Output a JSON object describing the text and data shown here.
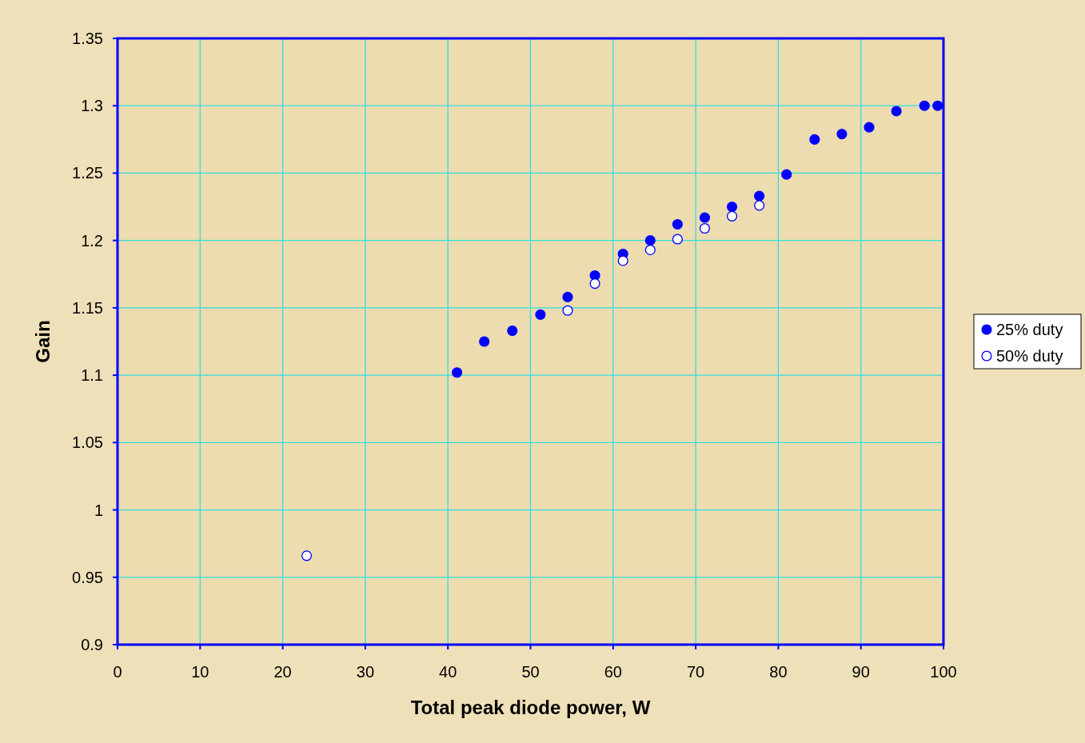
{
  "chart_data": {
    "type": "scatter",
    "xlabel": "Total peak diode power, W",
    "ylabel": "Gain",
    "xlim": [
      0,
      100
    ],
    "xticks": [
      0,
      10,
      20,
      30,
      40,
      50,
      60,
      70,
      80,
      90,
      100
    ],
    "ylim": [
      0.9,
      1.35
    ],
    "yticks": [
      {
        "value": 0.9,
        "label": "0.9"
      },
      {
        "value": 0.95,
        "label": "0.95"
      },
      {
        "value": 1,
        "label": "1"
      },
      {
        "value": 1.05,
        "label": "1.05"
      },
      {
        "value": 1.1,
        "label": "1.1"
      },
      {
        "value": 1.15,
        "label": "1.15"
      },
      {
        "value": 1.2,
        "label": "1.2"
      },
      {
        "value": 1.25,
        "label": "1.25"
      },
      {
        "value": 1.3,
        "label": "1.3"
      },
      {
        "value": 1.35,
        "label": "1.35"
      }
    ],
    "grid": true,
    "legend": "right",
    "marker": "circle",
    "series": [
      {
        "name": "25% duty",
        "color": "#0000ff",
        "x": [
          41.1,
          44.4,
          47.8,
          51.2,
          54.5,
          57.8,
          61.2,
          64.5,
          67.8,
          71.1,
          74.4,
          77.7,
          81.0,
          84.4,
          87.7,
          91.0,
          94.3,
          97.7,
          99.3
        ],
        "values": [
          1.102,
          1.125,
          1.133,
          1.145,
          1.158,
          1.174,
          1.19,
          1.2,
          1.212,
          1.217,
          1.225,
          1.233,
          1.249,
          1.275,
          1.279,
          1.284,
          1.296,
          1.3,
          1.3
        ]
      },
      {
        "name": "50% duty",
        "color": "#0000ff",
        "x": [
          22.9,
          54.5,
          57.8,
          61.2,
          64.5,
          67.8,
          71.1,
          74.4,
          77.7
        ],
        "values": [
          0.966,
          1.148,
          1.168,
          1.185,
          1.193,
          1.201,
          1.209,
          1.218,
          1.226
        ]
      }
    ]
  }
}
